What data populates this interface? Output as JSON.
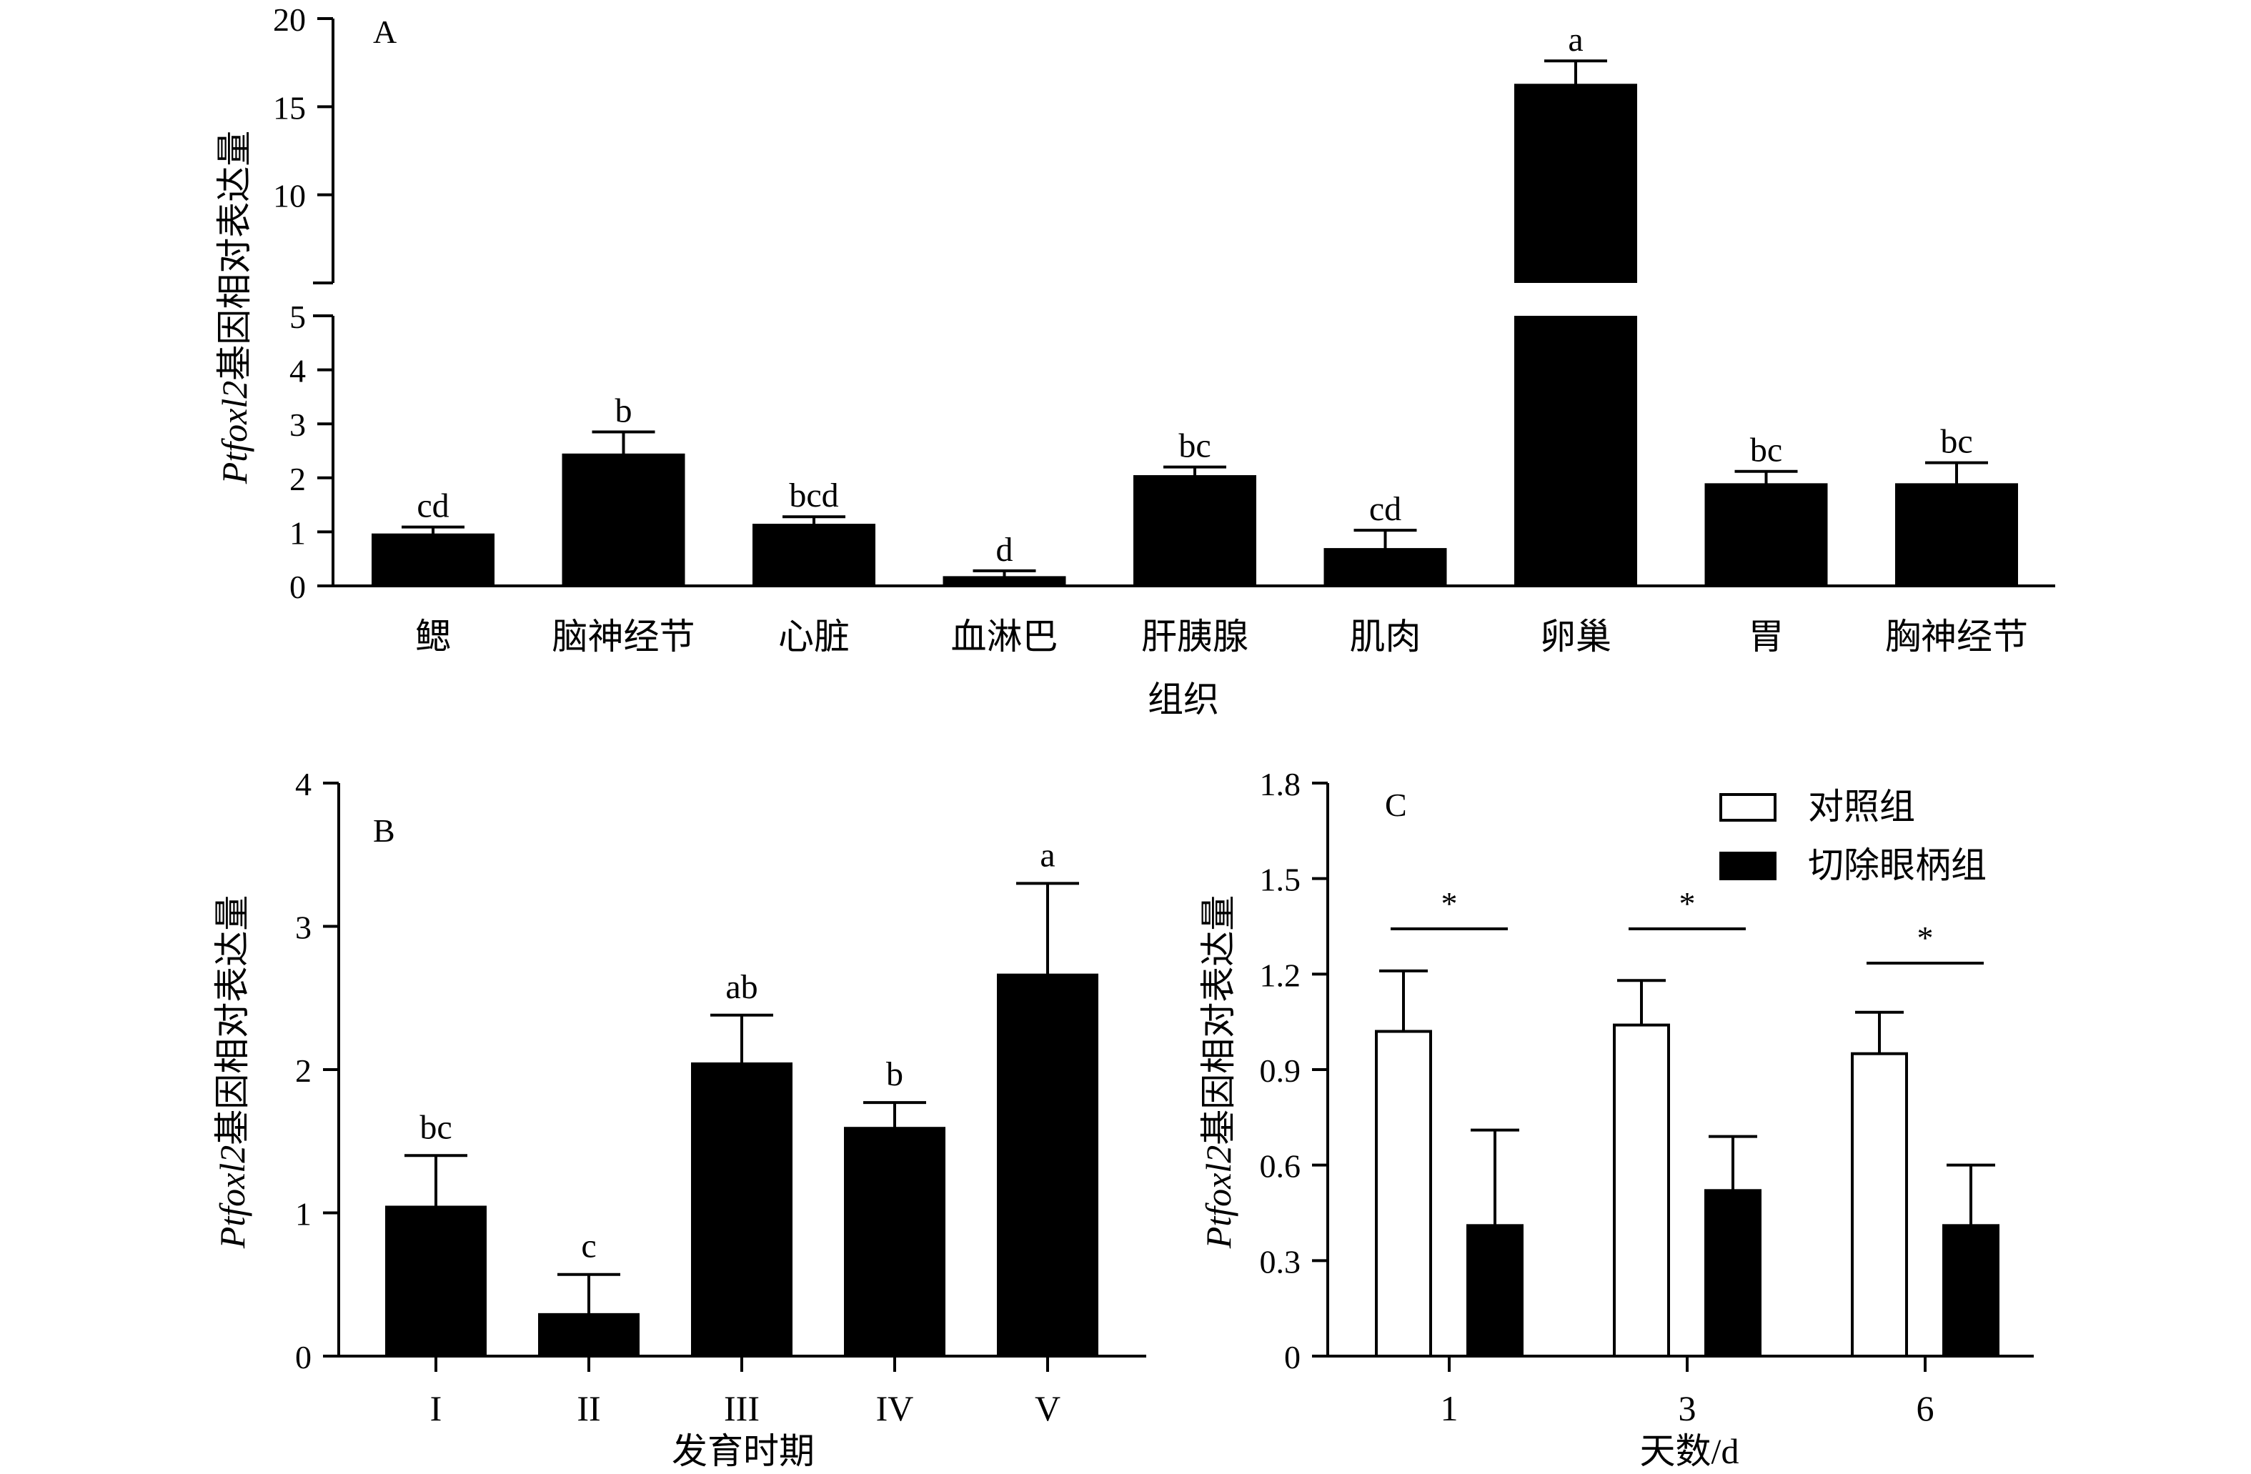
{
  "chart_data": [
    {
      "type": "bar",
      "panel_label": "A",
      "xlabel": "组织",
      "ylabel": "Ptfoxl2基因相对表达量",
      "ylabel_italic": "Ptfoxl2",
      "ylabel_rest": "基因相对表达量",
      "axis_break": true,
      "ylim_lower": [
        0,
        5
      ],
      "ylim_upper": [
        5,
        20
      ],
      "yticks_lower": [
        "0",
        "1",
        "2",
        "3",
        "4",
        "5"
      ],
      "yticks_upper": [
        "10",
        "15",
        "20"
      ],
      "categories": [
        "鳃",
        "脑神经节",
        "心脏",
        "血淋巴",
        "肝胰腺",
        "肌肉",
        "卵巢",
        "胃",
        "胸神经节"
      ],
      "values": [
        0.97,
        2.45,
        1.15,
        0.18,
        2.05,
        0.7,
        16.3,
        1.9,
        1.9
      ],
      "errors": [
        0.12,
        0.4,
        0.13,
        0.1,
        0.15,
        0.33,
        1.3,
        0.22,
        0.38
      ],
      "significance": [
        "cd",
        "b",
        "bcd",
        "d",
        "bc",
        "cd",
        "a",
        "bc",
        "bc"
      ]
    },
    {
      "type": "bar",
      "panel_label": "B",
      "xlabel": "发育时期",
      "ylabel": "Ptfoxl2基因相对表达量",
      "ylabel_italic": "Ptfoxl2",
      "ylabel_rest": "基因相对表达量",
      "ylim": [
        0,
        4
      ],
      "yticks": [
        "0",
        "1",
        "2",
        "3",
        "4"
      ],
      "categories": [
        "I",
        "II",
        "III",
        "IV",
        "V"
      ],
      "values": [
        1.05,
        0.3,
        2.05,
        1.6,
        2.67
      ],
      "errors": [
        0.35,
        0.27,
        0.33,
        0.17,
        0.63
      ],
      "significance": [
        "bc",
        "c",
        "ab",
        "b",
        "a"
      ]
    },
    {
      "type": "bar",
      "panel_label": "C",
      "xlabel": "天数/d",
      "ylabel": "Ptfoxl2基因相对表达量",
      "ylabel_italic": "Ptfoxl2",
      "ylabel_rest": "基因相对表达量",
      "ylim": [
        0,
        1.8
      ],
      "yticks": [
        "0",
        "0.3",
        "0.6",
        "0.9",
        "1.2",
        "1.5",
        "1.8"
      ],
      "categories": [
        "1",
        "3",
        "6"
      ],
      "legend_position": "top-right",
      "series": [
        {
          "name": "对照组",
          "fill": "#ffffff",
          "values": [
            1.02,
            1.04,
            0.95
          ],
          "errors": [
            0.19,
            0.14,
            0.13
          ]
        },
        {
          "name": "切除眼柄组",
          "fill": "#000000",
          "values": [
            0.41,
            0.52,
            0.41
          ],
          "errors": [
            0.3,
            0.17,
            0.19
          ]
        }
      ],
      "significance": [
        "*",
        "*",
        "*"
      ]
    }
  ]
}
